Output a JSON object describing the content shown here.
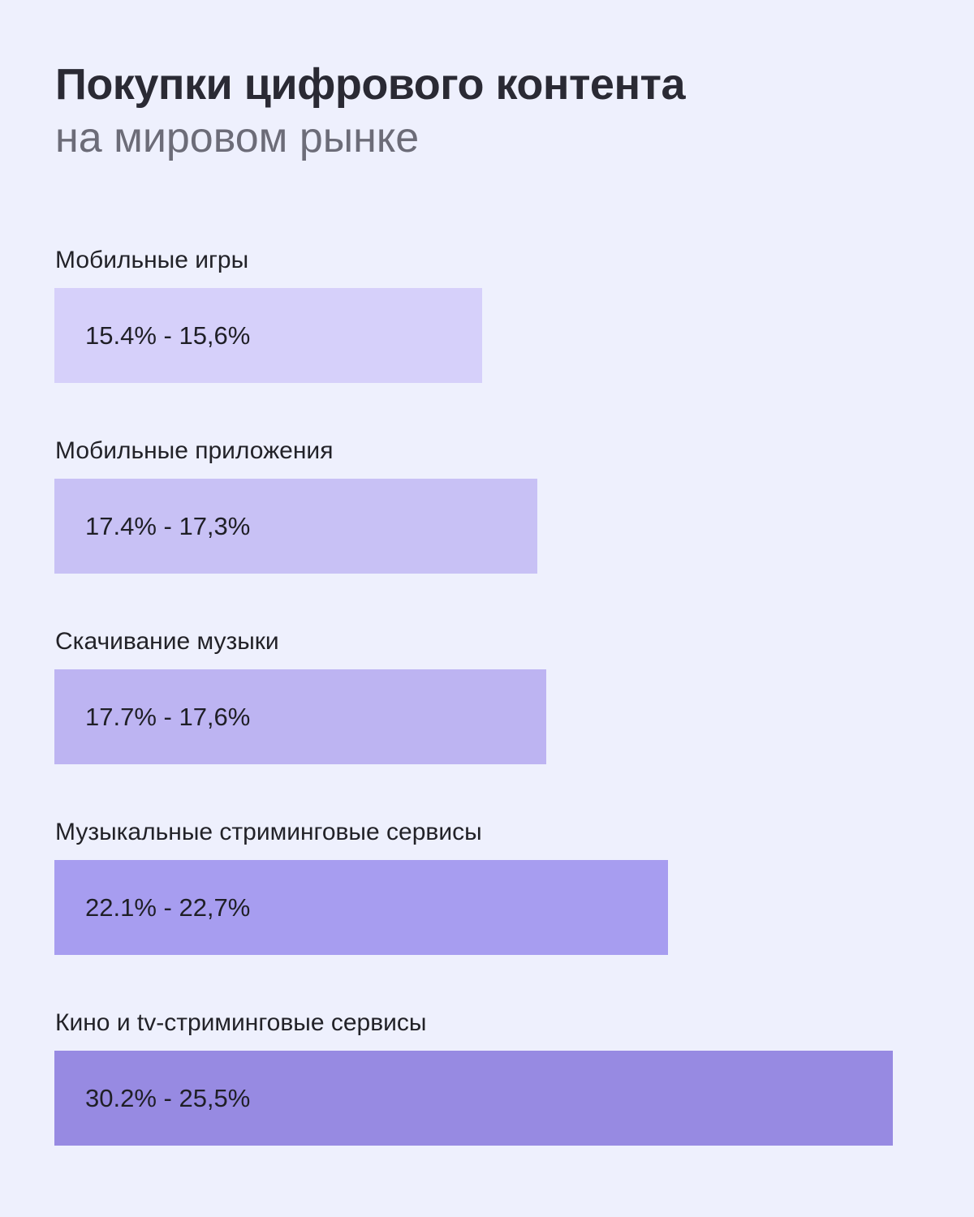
{
  "chart_data": {
    "type": "bar",
    "orientation": "horizontal",
    "title": "Покупки цифрового контента",
    "subtitle": "на мировом рынке",
    "xlabel": "",
    "ylabel": "",
    "grid": false,
    "legend": "none",
    "xlim": [
      0,
      31.3
    ],
    "categories": [
      "Мобильные игры",
      "Мобильные приложения",
      "Скачивание музыки",
      "Музыкальные стриминговые сервисы",
      "Кино и tv-стриминговые сервисы"
    ],
    "series": [
      {
        "values": [
          15.4,
          17.4,
          17.7,
          22.1,
          30.2
        ]
      }
    ],
    "data_labels": [
      "15.4% - 15,6%",
      "17.4% - 17,3%",
      "17.7% - 17,6%",
      "22.1% - 22,7%",
      "30.2% - 25,5%"
    ],
    "bar_colors": [
      "#d6d0fa",
      "#c8c1f5",
      "#bdb4f2",
      "#a79df0",
      "#978ae2"
    ]
  },
  "colors": {
    "background": "#eef0fd",
    "title": "#2a2a34",
    "subtitle": "#6c6c78"
  }
}
